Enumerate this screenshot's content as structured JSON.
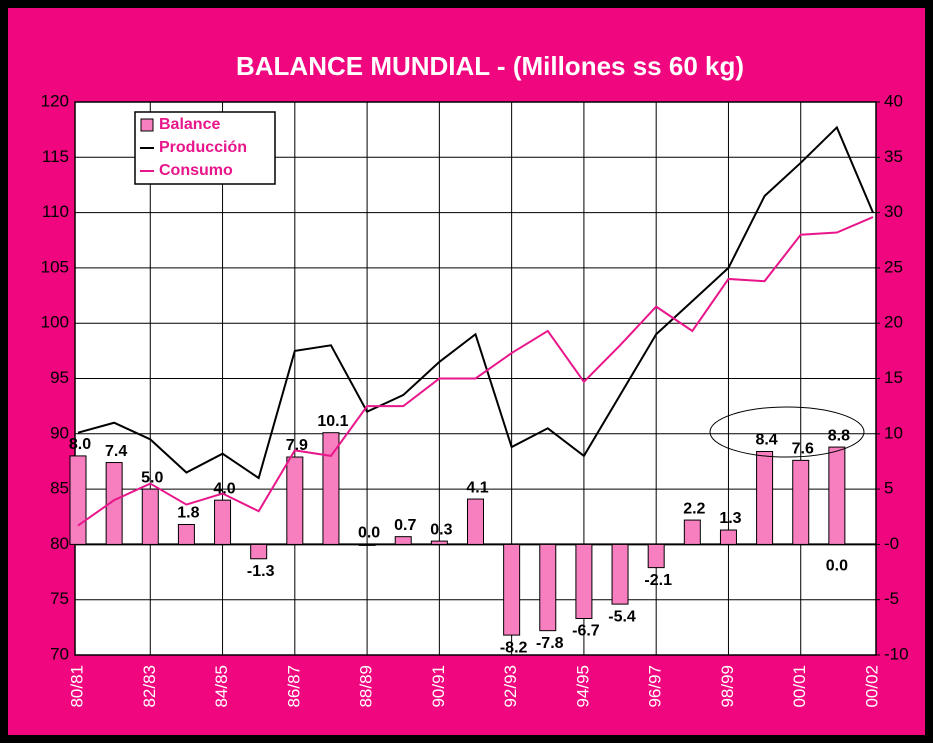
{
  "chart_data": {
    "type": "bar",
    "title": "BALANCE MUNDIAL - (Millones ss 60 kg)",
    "categories": [
      "80/81",
      null,
      "82/83",
      null,
      "84/85",
      null,
      "86/87",
      null,
      "88/89",
      null,
      "90/91",
      null,
      "92/93",
      null,
      "94/95",
      null,
      "96/97",
      null,
      "98/99",
      null,
      "00/01",
      null,
      "00/02"
    ],
    "series": [
      {
        "name": "Balance",
        "type": "bar",
        "axis": "y2",
        "color": "#f77fbf",
        "values": [
          8.0,
          7.4,
          5.0,
          1.8,
          4.0,
          -1.3,
          7.9,
          10.1,
          0.0,
          0.7,
          0.3,
          4.1,
          -8.2,
          -7.8,
          -6.7,
          -5.4,
          -2.1,
          2.2,
          1.3,
          8.4,
          7.6,
          8.8,
          null
        ],
        "value_labels": [
          "8.0",
          "7.4",
          "5.0",
          "1.8",
          "4.0",
          "-1.3",
          "7.9",
          "10.1",
          "0.0",
          "0.7",
          "0.3",
          "4.1",
          "-8.2",
          "-7.8",
          "-6.7",
          "-5.4",
          "-2.1",
          "2.2",
          "1.3",
          "8.4",
          "7.6",
          "8.8",
          null
        ]
      },
      {
        "name": "Producción",
        "type": "line",
        "color": "#000000",
        "values": [
          90.1,
          91,
          89.5,
          86.5,
          88.2,
          86,
          97.5,
          98,
          92,
          93.5,
          96.5,
          99,
          88.8,
          90.5,
          88,
          93.5,
          99,
          102,
          105,
          111.5,
          114.5,
          117.7,
          110
        ]
      },
      {
        "name": "Consumo",
        "type": "line",
        "color": "#e8168a",
        "values": [
          81.7,
          84,
          85.5,
          83.6,
          84.6,
          83,
          88.5,
          88,
          92.5,
          92.5,
          95,
          95,
          97.3,
          99.3,
          94.7,
          98,
          101.5,
          99.3,
          104,
          103.8,
          108,
          108.2,
          109.6
        ]
      }
    ],
    "annotations": [
      "0.0"
    ],
    "ylim": [
      70,
      120
    ],
    "yticks": [
      70,
      75,
      80,
      85,
      90,
      95,
      100,
      105,
      110,
      115,
      120
    ],
    "y2lim": [
      -10,
      40
    ],
    "y2ticks": [
      -10,
      -5,
      {
        "value": 0,
        "label": "-0"
      },
      5,
      10,
      15,
      20,
      25,
      30,
      35,
      40
    ],
    "grid": true,
    "legend": "top-left"
  }
}
